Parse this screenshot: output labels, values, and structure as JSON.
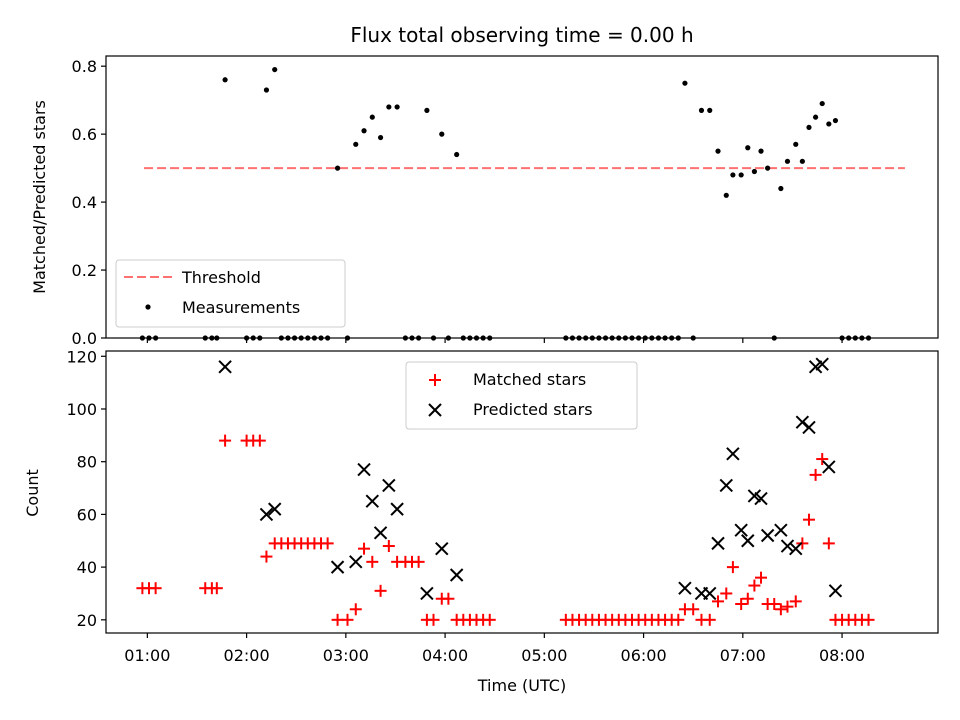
{
  "chart_data": [
    {
      "type": "scatter",
      "title": "Flux total observing time = 0.00 h",
      "xlabel": "",
      "ylabel": "Matched/Predicted stars",
      "xlim": [
        "00:35",
        "08:58"
      ],
      "ylim": [
        0,
        0.83
      ],
      "yticks": [
        0.0,
        0.2,
        0.4,
        0.6,
        0.8
      ],
      "ytick_labels": [
        "0.0",
        "0.2",
        "0.4",
        "0.6",
        "0.8"
      ],
      "legend_position": "lower-left",
      "threshold": {
        "name": "Threshold",
        "value": 0.5,
        "x_range": [
          "00:58",
          "08:38"
        ],
        "color": "#ff7070"
      },
      "series": [
        {
          "name": "Measurements",
          "color": "#000000",
          "marker": "dot",
          "points": [
            [
              "00:57",
              0
            ],
            [
              "01:01",
              0
            ],
            [
              "01:05",
              0
            ],
            [
              "01:35",
              0
            ],
            [
              "01:39",
              0
            ],
            [
              "01:42",
              0
            ],
            [
              "01:47",
              0.76
            ],
            [
              "02:00",
              0
            ],
            [
              "02:04",
              0
            ],
            [
              "02:08",
              0
            ],
            [
              "02:12",
              0.73
            ],
            [
              "02:17",
              0.79
            ],
            [
              "02:21",
              0
            ],
            [
              "02:25",
              0
            ],
            [
              "02:29",
              0
            ],
            [
              "02:33",
              0
            ],
            [
              "02:37",
              0
            ],
            [
              "02:41",
              0
            ],
            [
              "02:45",
              0
            ],
            [
              "02:49",
              0
            ],
            [
              "02:55",
              0.5
            ],
            [
              "03:01",
              0
            ],
            [
              "03:06",
              0.57
            ],
            [
              "03:11",
              0.61
            ],
            [
              "03:16",
              0.65
            ],
            [
              "03:21",
              0.59
            ],
            [
              "03:26",
              0.68
            ],
            [
              "03:31",
              0.68
            ],
            [
              "03:36",
              0
            ],
            [
              "03:40",
              0
            ],
            [
              "03:44",
              0
            ],
            [
              "03:49",
              0.67
            ],
            [
              "03:53",
              0
            ],
            [
              "03:58",
              0.6
            ],
            [
              "04:02",
              0
            ],
            [
              "04:07",
              0.54
            ],
            [
              "04:11",
              0
            ],
            [
              "04:15",
              0
            ],
            [
              "04:19",
              0
            ],
            [
              "04:23",
              0
            ],
            [
              "04:27",
              0
            ],
            [
              "05:13",
              0
            ],
            [
              "05:17",
              0
            ],
            [
              "05:21",
              0
            ],
            [
              "05:25",
              0
            ],
            [
              "05:29",
              0
            ],
            [
              "05:33",
              0
            ],
            [
              "05:37",
              0
            ],
            [
              "05:41",
              0
            ],
            [
              "05:45",
              0
            ],
            [
              "05:49",
              0
            ],
            [
              "05:53",
              0
            ],
            [
              "05:57",
              0
            ],
            [
              "06:01",
              0
            ],
            [
              "06:05",
              0
            ],
            [
              "06:09",
              0
            ],
            [
              "06:13",
              0
            ],
            [
              "06:17",
              0
            ],
            [
              "06:21",
              0
            ],
            [
              "06:25",
              0.75
            ],
            [
              "06:30",
              0
            ],
            [
              "06:35",
              0.67
            ],
            [
              "06:40",
              0.67
            ],
            [
              "06:45",
              0.55
            ],
            [
              "06:50",
              0.42
            ],
            [
              "06:54",
              0.48
            ],
            [
              "06:59",
              0.48
            ],
            [
              "07:03",
              0.56
            ],
            [
              "07:07",
              0.49
            ],
            [
              "07:11",
              0.55
            ],
            [
              "07:15",
              0.5
            ],
            [
              "07:19",
              0
            ],
            [
              "07:23",
              0.44
            ],
            [
              "07:27",
              0.52
            ],
            [
              "07:32",
              0.57
            ],
            [
              "07:36",
              0.52
            ],
            [
              "07:40",
              0.62
            ],
            [
              "07:44",
              0.65
            ],
            [
              "07:48",
              0.69
            ],
            [
              "07:52",
              0.63
            ],
            [
              "07:56",
              0.64
            ],
            [
              "08:00",
              0
            ],
            [
              "08:04",
              0
            ],
            [
              "08:08",
              0
            ],
            [
              "08:12",
              0
            ],
            [
              "08:16",
              0
            ]
          ]
        }
      ]
    },
    {
      "type": "scatter",
      "title": "",
      "xlabel": "Time (UTC)",
      "ylabel": "Count",
      "xlim": [
        "00:35",
        "08:58"
      ],
      "ylim": [
        15,
        122
      ],
      "xticks": [
        "01:00",
        "02:00",
        "03:00",
        "04:00",
        "05:00",
        "06:00",
        "07:00",
        "08:00"
      ],
      "yticks": [
        20,
        40,
        60,
        80,
        100,
        120
      ],
      "ytick_labels": [
        "20",
        "40",
        "60",
        "80",
        "100",
        "120"
      ],
      "legend_position": "upper-center",
      "series": [
        {
          "name": "Matched stars",
          "color": "#ff0000",
          "marker": "plus",
          "points": [
            [
              "00:57",
              32
            ],
            [
              "01:01",
              32
            ],
            [
              "01:05",
              32
            ],
            [
              "01:35",
              32
            ],
            [
              "01:39",
              32
            ],
            [
              "01:42",
              32
            ],
            [
              "01:47",
              88
            ],
            [
              "02:00",
              88
            ],
            [
              "02:04",
              88
            ],
            [
              "02:08",
              88
            ],
            [
              "02:12",
              44
            ],
            [
              "02:17",
              49
            ],
            [
              "02:21",
              49
            ],
            [
              "02:25",
              49
            ],
            [
              "02:29",
              49
            ],
            [
              "02:33",
              49
            ],
            [
              "02:37",
              49
            ],
            [
              "02:41",
              49
            ],
            [
              "02:45",
              49
            ],
            [
              "02:49",
              49
            ],
            [
              "02:55",
              20
            ],
            [
              "03:01",
              20
            ],
            [
              "03:06",
              24
            ],
            [
              "03:11",
              47
            ],
            [
              "03:16",
              42
            ],
            [
              "03:21",
              31
            ],
            [
              "03:26",
              48
            ],
            [
              "03:31",
              42
            ],
            [
              "03:36",
              42
            ],
            [
              "03:40",
              42
            ],
            [
              "03:44",
              42
            ],
            [
              "03:49",
              20
            ],
            [
              "03:53",
              20
            ],
            [
              "03:58",
              28
            ],
            [
              "04:02",
              28
            ],
            [
              "04:07",
              20
            ],
            [
              "04:11",
              20
            ],
            [
              "04:15",
              20
            ],
            [
              "04:19",
              20
            ],
            [
              "04:23",
              20
            ],
            [
              "04:27",
              20
            ],
            [
              "05:13",
              20
            ],
            [
              "05:17",
              20
            ],
            [
              "05:21",
              20
            ],
            [
              "05:25",
              20
            ],
            [
              "05:29",
              20
            ],
            [
              "05:33",
              20
            ],
            [
              "05:37",
              20
            ],
            [
              "05:41",
              20
            ],
            [
              "05:45",
              20
            ],
            [
              "05:49",
              20
            ],
            [
              "05:53",
              20
            ],
            [
              "05:57",
              20
            ],
            [
              "06:01",
              20
            ],
            [
              "06:05",
              20
            ],
            [
              "06:09",
              20
            ],
            [
              "06:13",
              20
            ],
            [
              "06:17",
              20
            ],
            [
              "06:21",
              20
            ],
            [
              "06:25",
              24
            ],
            [
              "06:30",
              24
            ],
            [
              "06:35",
              20
            ],
            [
              "06:40",
              20
            ],
            [
              "06:45",
              27
            ],
            [
              "06:50",
              30
            ],
            [
              "06:54",
              40
            ],
            [
              "06:59",
              26
            ],
            [
              "07:03",
              28
            ],
            [
              "07:07",
              33
            ],
            [
              "07:11",
              36
            ],
            [
              "07:15",
              26
            ],
            [
              "07:19",
              26
            ],
            [
              "07:23",
              24
            ],
            [
              "07:27",
              25
            ],
            [
              "07:32",
              27
            ],
            [
              "07:36",
              49
            ],
            [
              "07:40",
              58
            ],
            [
              "07:44",
              75
            ],
            [
              "07:48",
              81
            ],
            [
              "07:52",
              49
            ],
            [
              "07:56",
              20
            ],
            [
              "08:00",
              20
            ],
            [
              "08:04",
              20
            ],
            [
              "08:08",
              20
            ],
            [
              "08:12",
              20
            ],
            [
              "08:16",
              20
            ]
          ]
        },
        {
          "name": "Predicted stars",
          "color": "#000000",
          "marker": "x",
          "points": [
            [
              "01:47",
              116
            ],
            [
              "02:12",
              60
            ],
            [
              "02:17",
              62
            ],
            [
              "02:55",
              40
            ],
            [
              "03:06",
              42
            ],
            [
              "03:11",
              77
            ],
            [
              "03:16",
              65
            ],
            [
              "03:21",
              53
            ],
            [
              "03:26",
              71
            ],
            [
              "03:31",
              62
            ],
            [
              "03:49",
              30
            ],
            [
              "03:58",
              47
            ],
            [
              "04:07",
              37
            ],
            [
              "06:25",
              32
            ],
            [
              "06:35",
              30
            ],
            [
              "06:40",
              30
            ],
            [
              "06:45",
              49
            ],
            [
              "06:50",
              71
            ],
            [
              "06:54",
              83
            ],
            [
              "06:59",
              54
            ],
            [
              "07:03",
              50
            ],
            [
              "07:07",
              67
            ],
            [
              "07:11",
              66
            ],
            [
              "07:15",
              52
            ],
            [
              "07:23",
              54
            ],
            [
              "07:27",
              48
            ],
            [
              "07:32",
              47
            ],
            [
              "07:36",
              95
            ],
            [
              "07:40",
              93
            ],
            [
              "07:44",
              116
            ],
            [
              "07:48",
              117
            ],
            [
              "07:52",
              78
            ],
            [
              "07:56",
              31
            ]
          ]
        }
      ]
    }
  ]
}
